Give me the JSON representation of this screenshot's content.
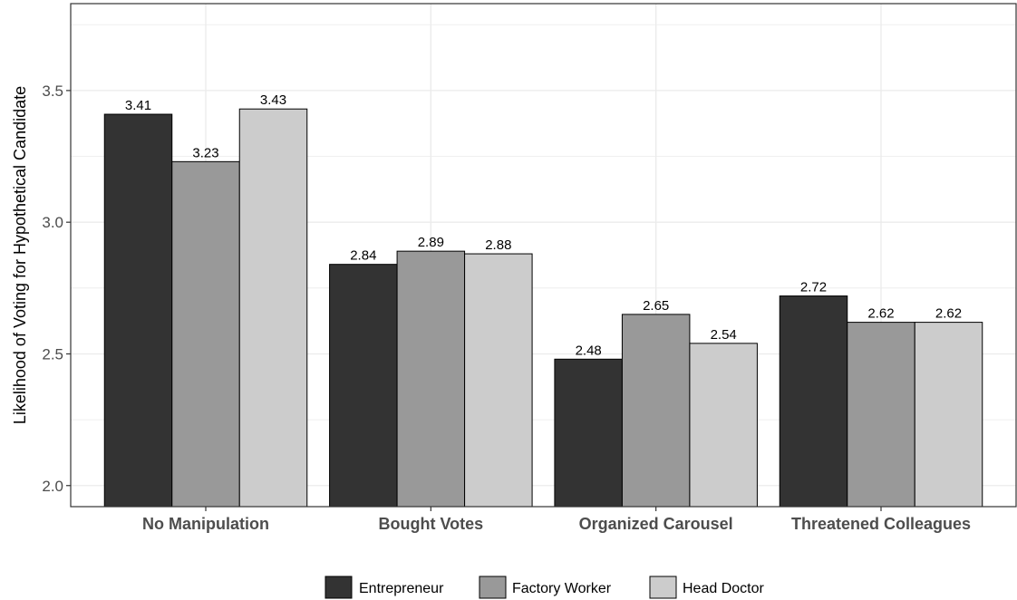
{
  "chart_data": {
    "type": "bar",
    "categories": [
      "No Manipulation",
      "Bought Votes",
      "Organized Carousel",
      "Threatened Colleagues"
    ],
    "series": [
      {
        "name": "Entrepreneur",
        "values": [
          3.41,
          2.84,
          2.48,
          2.72
        ],
        "labels": [
          "3.41",
          "2.84",
          "2.48",
          "2.72"
        ],
        "color": "#333333"
      },
      {
        "name": "Factory Worker",
        "values": [
          3.23,
          2.89,
          2.65,
          2.62
        ],
        "labels": [
          "3.23",
          "2.89",
          "2.65",
          "2.62"
        ],
        "color": "#999999"
      },
      {
        "name": "Head Doctor",
        "values": [
          3.43,
          2.88,
          2.54,
          2.62
        ],
        "labels": [
          "3.43",
          "2.88",
          "2.54",
          "2.62"
        ],
        "color": "#cccccc"
      }
    ],
    "xlabel": "",
    "ylabel": "Likelihood of Voting for Hypothetical Candidate",
    "ylim": [
      1.92,
      3.83
    ],
    "yticks": [
      2.0,
      2.5,
      3.0,
      3.5
    ],
    "ytick_labels": [
      "2.0",
      "2.5",
      "3.0",
      "3.5"
    ],
    "grid": true,
    "legend_position": "bottom"
  }
}
